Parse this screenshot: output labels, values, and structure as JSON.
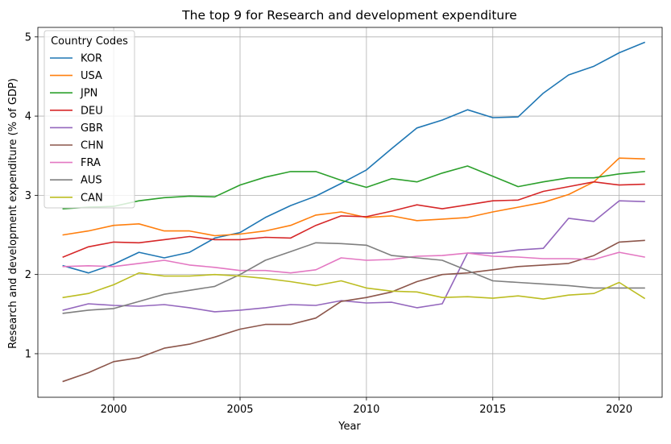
{
  "chart_data": {
    "type": "line",
    "title": "The top 9 for Research and development expenditure",
    "xlabel": "Year",
    "ylabel": "Research and development expenditure (% of GDP)",
    "xlim": [
      1997.0,
      2021.7
    ],
    "ylim": [
      0.45,
      5.12
    ],
    "xticks": [
      2000,
      2005,
      2010,
      2015,
      2020
    ],
    "yticks": [
      1,
      2,
      3,
      4,
      5
    ],
    "grid": true,
    "legend": {
      "title": "Country Codes",
      "placement": "top-left"
    },
    "x": [
      1998,
      1999,
      2000,
      2001,
      2002,
      2003,
      2004,
      2005,
      2006,
      2007,
      2008,
      2009,
      2010,
      2011,
      2012,
      2013,
      2014,
      2015,
      2016,
      2017,
      2018,
      2019,
      2020,
      2021
    ],
    "series": [
      {
        "name": "KOR",
        "color": "#1f77b4",
        "values": [
          2.11,
          2.02,
          2.13,
          2.28,
          2.21,
          2.28,
          2.46,
          2.53,
          2.72,
          2.87,
          2.99,
          3.15,
          3.32,
          3.59,
          3.85,
          3.95,
          4.08,
          3.98,
          3.99,
          4.29,
          4.52,
          4.63,
          4.8,
          4.93
        ]
      },
      {
        "name": "USA",
        "color": "#ff7f0e",
        "values": [
          2.5,
          2.55,
          2.62,
          2.64,
          2.55,
          2.55,
          2.49,
          2.51,
          2.55,
          2.62,
          2.75,
          2.79,
          2.72,
          2.74,
          2.68,
          2.7,
          2.72,
          2.79,
          2.85,
          2.91,
          3.01,
          3.17,
          3.47,
          3.46
        ]
      },
      {
        "name": "JPN",
        "color": "#2ca02c",
        "values": [
          2.83,
          2.85,
          2.86,
          2.93,
          2.97,
          2.99,
          2.98,
          3.13,
          3.23,
          3.3,
          3.3,
          3.19,
          3.1,
          3.21,
          3.17,
          3.28,
          3.37,
          3.24,
          3.11,
          3.17,
          3.22,
          3.22,
          3.27,
          3.3
        ]
      },
      {
        "name": "DEU",
        "color": "#d62728",
        "values": [
          2.22,
          2.35,
          2.41,
          2.4,
          2.44,
          2.48,
          2.44,
          2.44,
          2.47,
          2.46,
          2.62,
          2.74,
          2.73,
          2.8,
          2.88,
          2.83,
          2.88,
          2.93,
          2.94,
          3.05,
          3.11,
          3.17,
          3.13,
          3.14
        ]
      },
      {
        "name": "GBR",
        "color": "#9467bd",
        "values": [
          1.55,
          1.63,
          1.61,
          1.6,
          1.62,
          1.58,
          1.53,
          1.55,
          1.58,
          1.62,
          1.61,
          1.67,
          1.64,
          1.65,
          1.58,
          1.63,
          2.27,
          2.27,
          2.31,
          2.33,
          2.71,
          2.67,
          2.93,
          2.92
        ]
      },
      {
        "name": "CHN",
        "color": "#8c564b",
        "values": [
          0.65,
          0.76,
          0.9,
          0.95,
          1.07,
          1.12,
          1.21,
          1.31,
          1.37,
          1.37,
          1.45,
          1.66,
          1.71,
          1.78,
          1.91,
          2.0,
          2.02,
          2.06,
          2.1,
          2.12,
          2.14,
          2.24,
          2.41,
          2.43
        ]
      },
      {
        "name": "FRA",
        "color": "#e377c2",
        "values": [
          2.1,
          2.11,
          2.1,
          2.14,
          2.18,
          2.12,
          2.09,
          2.05,
          2.05,
          2.02,
          2.06,
          2.21,
          2.18,
          2.19,
          2.23,
          2.24,
          2.27,
          2.23,
          2.22,
          2.2,
          2.2,
          2.19,
          2.28,
          2.22
        ]
      },
      {
        "name": "AUS",
        "color": "#7f7f7f",
        "values": [
          1.51,
          1.55,
          1.57,
          1.66,
          1.75,
          1.8,
          1.85,
          2.0,
          2.18,
          2.29,
          2.4,
          2.39,
          2.37,
          2.24,
          2.21,
          2.18,
          2.05,
          1.92,
          1.9,
          1.88,
          1.86,
          1.83,
          1.83,
          1.83
        ]
      },
      {
        "name": "CAN",
        "color": "#bcbd22",
        "values": [
          1.71,
          1.76,
          1.87,
          2.02,
          1.98,
          1.98,
          2.0,
          1.98,
          1.95,
          1.91,
          1.86,
          1.92,
          1.83,
          1.79,
          1.78,
          1.71,
          1.72,
          1.7,
          1.73,
          1.69,
          1.74,
          1.76,
          1.9,
          1.7
        ]
      }
    ]
  }
}
